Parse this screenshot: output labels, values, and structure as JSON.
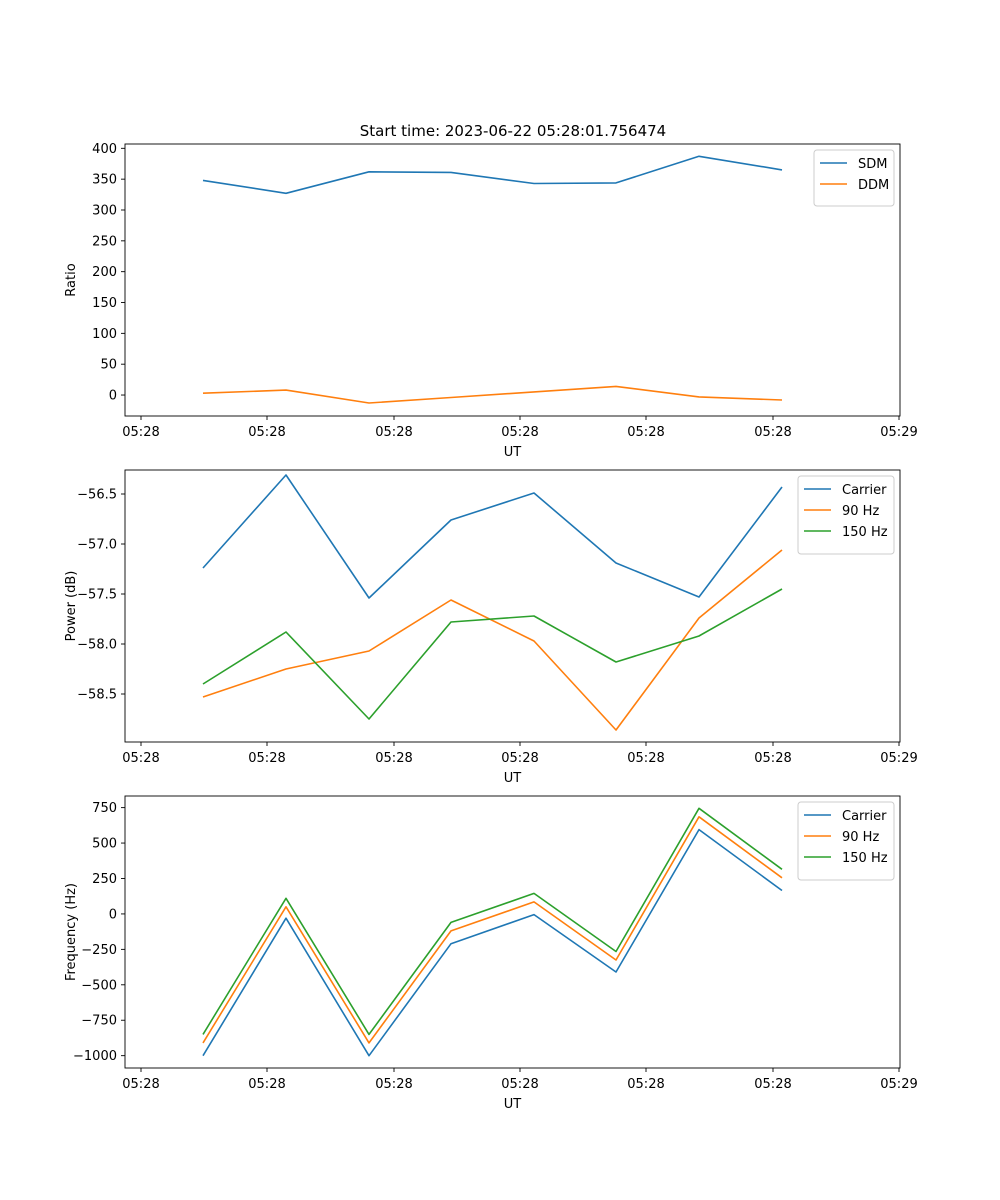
{
  "figure": {
    "title": "Start time: 2023-06-22 05:28:01.756474"
  },
  "chart_data": [
    {
      "type": "line",
      "xlabel": "UT",
      "ylabel": "Ratio",
      "x_tick_labels": [
        "05:28",
        "05:28",
        "05:28",
        "05:28",
        "05:28",
        "05:28",
        "05:28",
        "05:29"
      ],
      "y_ticks": [
        0,
        50,
        100,
        150,
        200,
        250,
        300,
        350,
        400
      ],
      "ylim": [
        -34,
        407
      ],
      "legend_position": "upper right",
      "grid": false,
      "series": [
        {
          "name": "SDM",
          "color": "#1f77b4",
          "values": [
            348,
            327,
            362,
            361,
            343,
            344,
            387,
            365
          ]
        },
        {
          "name": "DDM",
          "color": "#ff7f0e",
          "values": [
            3,
            8,
            -13,
            -4,
            5,
            14,
            -3,
            -8
          ]
        }
      ]
    },
    {
      "type": "line",
      "xlabel": "UT",
      "ylabel": "Power (dB)",
      "x_tick_labels": [
        "05:28",
        "05:28",
        "05:28",
        "05:28",
        "05:28",
        "05:28",
        "05:28",
        "05:29"
      ],
      "y_ticks": [
        -58.5,
        -58.0,
        -57.5,
        -57.0,
        -56.5
      ],
      "y_tick_labels": [
        "−58.5",
        "−58.0",
        "−57.5",
        "−57.0",
        "−56.5"
      ],
      "ylim": [
        -58.98,
        -56.26
      ],
      "legend_position": "upper right",
      "grid": false,
      "series": [
        {
          "name": "Carrier",
          "color": "#1f77b4",
          "values": [
            -57.24,
            -56.31,
            -57.54,
            -56.76,
            -56.49,
            -57.19,
            -57.53,
            -56.43
          ]
        },
        {
          "name": "90 Hz",
          "color": "#ff7f0e",
          "values": [
            -58.53,
            -58.25,
            -58.07,
            -57.56,
            -57.97,
            -58.86,
            -57.74,
            -57.06
          ]
        },
        {
          "name": "150 Hz",
          "color": "#2ca02c",
          "values": [
            -58.4,
            -57.88,
            -58.75,
            -57.78,
            -57.72,
            -58.18,
            -57.92,
            -57.45
          ]
        }
      ]
    },
    {
      "type": "line",
      "xlabel": "UT",
      "ylabel": "Frequency (Hz)",
      "x_tick_labels": [
        "05:28",
        "05:28",
        "05:28",
        "05:28",
        "05:28",
        "05:28",
        "05:28",
        "05:29"
      ],
      "y_ticks": [
        -1000,
        -750,
        -500,
        -250,
        0,
        250,
        500,
        750
      ],
      "y_tick_labels": [
        "−1000",
        "−750",
        "−500",
        "−250",
        "0",
        "250",
        "500",
        "750"
      ],
      "ylim": [
        -1087,
        832
      ],
      "legend_position": "upper right",
      "grid": false,
      "series": [
        {
          "name": "Carrier",
          "color": "#1f77b4",
          "values": [
            -1000,
            -30,
            -1000,
            -210,
            -5,
            -410,
            595,
            165
          ]
        },
        {
          "name": "90 Hz",
          "color": "#ff7f0e",
          "values": [
            -910,
            50,
            -910,
            -120,
            85,
            -325,
            685,
            255
          ]
        },
        {
          "name": "150 Hz",
          "color": "#2ca02c",
          "values": [
            -850,
            110,
            -850,
            -60,
            145,
            -265,
            745,
            315
          ]
        }
      ]
    }
  ]
}
